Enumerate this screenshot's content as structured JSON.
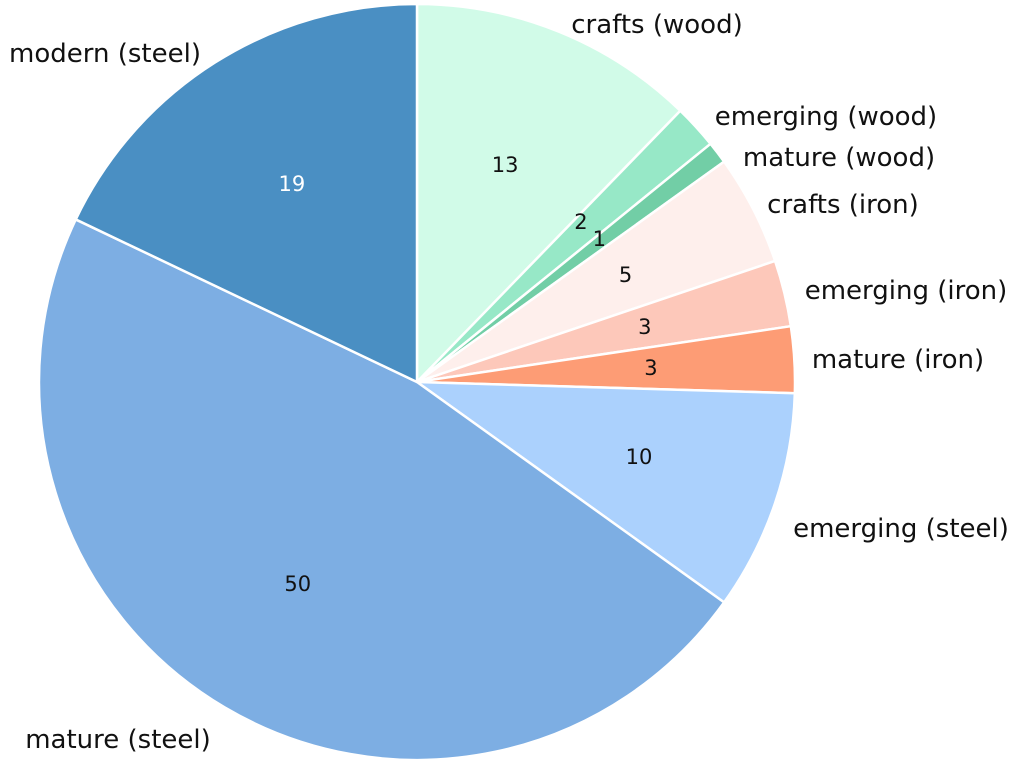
{
  "chart_data": {
    "type": "pie",
    "title": "",
    "start": "12 o'clock",
    "direction": "clockwise",
    "slices": [
      {
        "label": "crafts (wood)",
        "value": 13,
        "color": "#d1fbe8",
        "value_color": "#111111"
      },
      {
        "label": "emerging (wood)",
        "value": 2,
        "color": "#97e8c7",
        "value_color": "#111111"
      },
      {
        "label": "mature (wood)",
        "value": 1,
        "color": "#72cea6",
        "value_color": "#111111"
      },
      {
        "label": "crafts (iron)",
        "value": 5,
        "color": "#feefec",
        "value_color": "#111111"
      },
      {
        "label": "emerging (iron)",
        "value": 3,
        "color": "#fdc8ba",
        "value_color": "#111111"
      },
      {
        "label": "mature (iron)",
        "value": 3,
        "color": "#fd9c75",
        "value_color": "#111111"
      },
      {
        "label": "emerging (steel)",
        "value": 10,
        "color": "#abd1fd",
        "value_color": "#111111"
      },
      {
        "label": "mature (steel)",
        "value": 50,
        "color": "#7daee3",
        "value_color": "#111111"
      },
      {
        "label": "modern (steel)",
        "value": 19,
        "color": "#4a8fc3",
        "value_color": "#ffffff"
      }
    ]
  }
}
